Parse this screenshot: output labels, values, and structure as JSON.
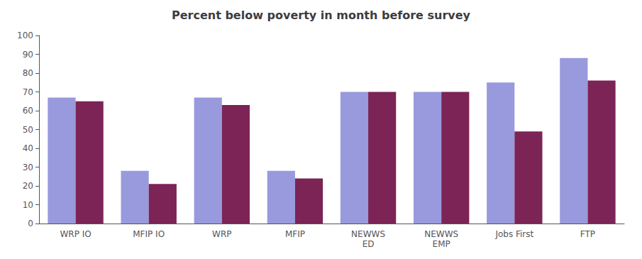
{
  "chart_data": {
    "type": "bar",
    "title": "Percent below poverty in month before survey",
    "categories": [
      "WRP IO",
      "MFIP IO",
      "WRP",
      "MFIP",
      "NEWWS\nED",
      "NEWWS\nEMP",
      "Jobs First",
      "FTP"
    ],
    "series": [
      {
        "color": "#9999dd",
        "values": [
          67,
          28,
          67,
          28,
          70,
          70,
          75,
          88
        ]
      },
      {
        "color": "#7B2455",
        "values": [
          65,
          21,
          63,
          24,
          70,
          70,
          49,
          76
        ]
      }
    ],
    "ylim": [
      0,
      100
    ],
    "yticks": [
      0,
      10,
      20,
      30,
      40,
      50,
      60,
      70,
      80,
      90,
      100
    ],
    "grid": false
  }
}
